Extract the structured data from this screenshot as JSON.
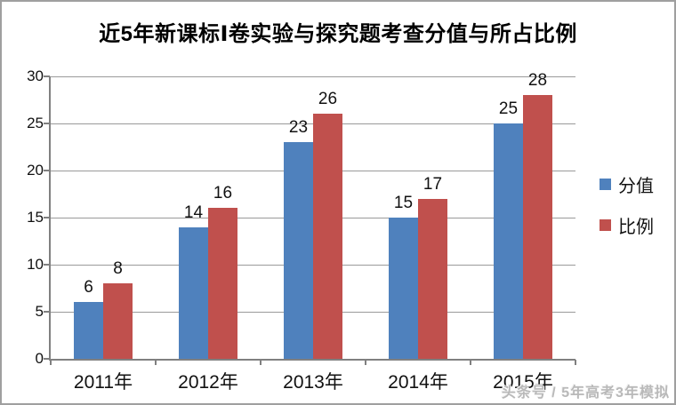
{
  "chart_data": {
    "type": "bar",
    "title": "近5年新课标Ⅰ卷实验与探究题考查分值与所占比例",
    "categories": [
      "2011年",
      "2012年",
      "2013年",
      "2014年",
      "2015年"
    ],
    "series": [
      {
        "name": "分值",
        "color": "#4F81BD",
        "values": [
          6,
          14,
          23,
          15,
          25
        ]
      },
      {
        "name": "比例",
        "color": "#C0504D",
        "values": [
          8,
          16,
          26,
          17,
          28
        ]
      }
    ],
    "ylim": [
      0,
      30
    ],
    "yticks": [
      0,
      5,
      10,
      15,
      20,
      25,
      30
    ],
    "grid": "horizontal",
    "legend_position": "right",
    "value_labels": true
  },
  "watermark": {
    "text": "头条号 / 5年高考3年模拟"
  },
  "colors": {
    "bar_blue": "#4F81BD",
    "bar_red": "#C0504D",
    "axis": "#808080",
    "gridline": "#9a9a9a",
    "text": "#111111",
    "frame_border": "#9f9f9f",
    "watermark": "#b9b9b9",
    "background": "#ffffff"
  }
}
